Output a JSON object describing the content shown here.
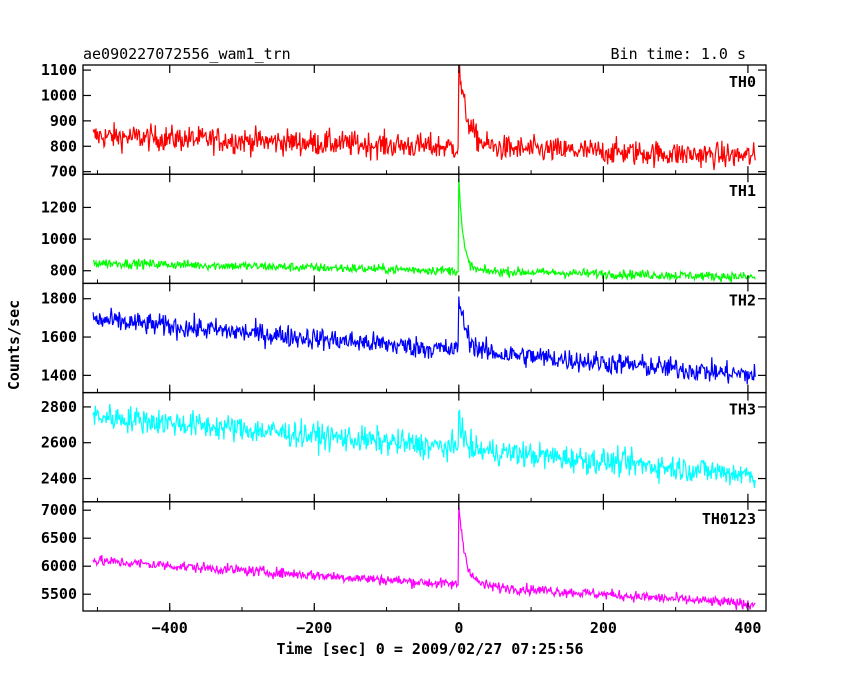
{
  "title": "ae090227072556_wam1_trn",
  "bin_time": "Bin time: 1.0 s",
  "chart_data": {
    "type": "line",
    "xlabel": "Time [sec] 0 = 2009/02/27 07:25:56",
    "ylabel": "Counts/sec",
    "xlim": [
      -520,
      425
    ],
    "xticks": [
      -400,
      -200,
      0,
      200,
      400
    ],
    "x_range": [
      -506,
      410
    ],
    "series": [
      {
        "name": "TH0",
        "color": "#ff0000",
        "ylim": [
          690,
          1120
        ],
        "yticks": [
          700,
          800,
          900,
          1000,
          1100
        ],
        "start": 840,
        "end": 760,
        "noise": 48,
        "peak": 1110,
        "post_level": 820,
        "decay": 12
      },
      {
        "name": "TH1",
        "color": "#00ff00",
        "ylim": [
          720,
          1410
        ],
        "yticks": [
          800,
          1000,
          1200
        ],
        "start": 850,
        "end": 760,
        "noise": 28,
        "peak": 1380,
        "post_level": 790,
        "decay": 6
      },
      {
        "name": "TH2",
        "color": "#0000ff",
        "ylim": [
          1310,
          1880
        ],
        "yticks": [
          1400,
          1600,
          1800
        ],
        "start": 1690,
        "end": 1400,
        "noise": 55,
        "peak": 1820,
        "post_level": 1500,
        "decay": 10
      },
      {
        "name": "TH3",
        "color": "#00ffff",
        "ylim": [
          2270,
          2880
        ],
        "yticks": [
          2400,
          2600,
          2800
        ],
        "start": 2750,
        "end": 2420,
        "noise": 70,
        "peak": 2820,
        "post_level": 2560,
        "decay": 5
      },
      {
        "name": "TH0123",
        "color": "#ff00ff",
        "ylim": [
          5200,
          7150
        ],
        "yticks": [
          5500,
          6000,
          6500,
          7000
        ],
        "start": 6100,
        "end": 5320,
        "noise": 90,
        "peak": 7100,
        "post_level": 5650,
        "decay": 9
      }
    ]
  }
}
